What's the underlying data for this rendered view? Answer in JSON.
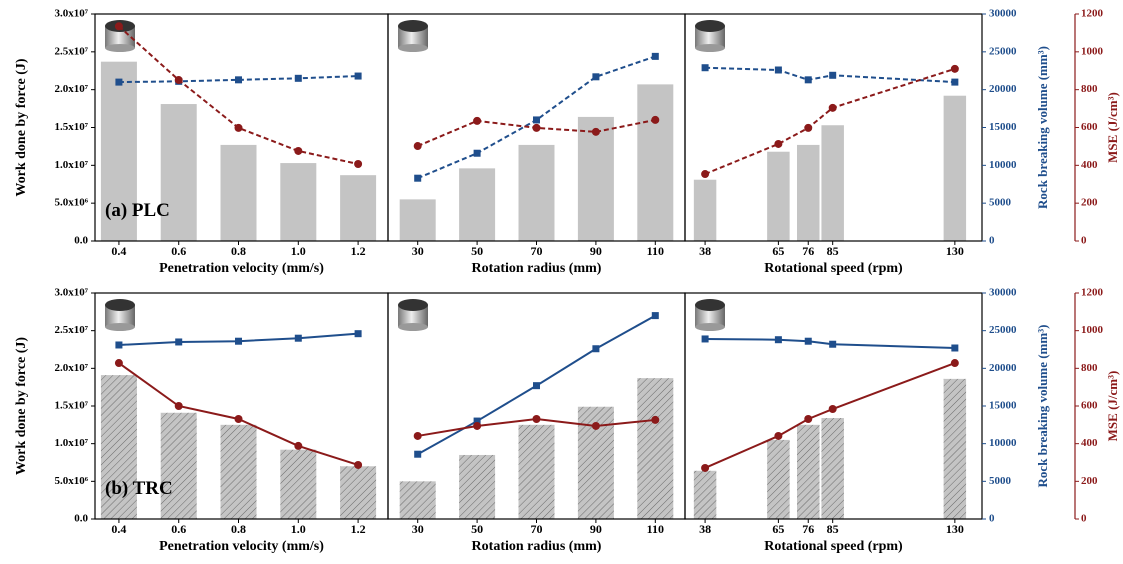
{
  "chart_data": [
    {
      "type": "bar",
      "annotation": "(a) PLC",
      "xlabel": "Penetration velocity (mm/s)",
      "ylabel": "Work done by force (J)",
      "ylim": [
        0,
        30000000
      ],
      "yticks": [
        {
          "value": 0,
          "label": "0.0"
        },
        {
          "value": 5000000,
          "label": "5.0x10⁶"
        },
        {
          "value": 10000000,
          "label": "1.0x10⁷"
        },
        {
          "value": 15000000,
          "label": "1.5x10⁷"
        },
        {
          "value": 20000000,
          "label": "2.0x10⁷"
        },
        {
          "value": 25000000,
          "label": "2.5x10⁷"
        },
        {
          "value": 30000000,
          "label": "3.0x10⁷"
        }
      ],
      "x": [
        0.4,
        0.6,
        0.8,
        1.0,
        1.2
      ],
      "xlim": [
        0.32,
        1.3
      ],
      "xticks": [
        0.4,
        0.6,
        0.8,
        {
          "value": 1.0,
          "label": "1.0"
        },
        1.2
      ],
      "series": [
        {
          "type": "bar",
          "axis": "y",
          "color": "#c4c4c4",
          "hatch": false,
          "values": [
            23700000,
            18100000,
            12700000,
            10300000,
            8700000
          ]
        },
        {
          "type": "line",
          "axis": "y2",
          "color": "#1f4e8c",
          "marker": "square",
          "linestyle": "dashed",
          "values": [
            21000,
            21100,
            21300,
            21500,
            21800
          ]
        },
        {
          "type": "line",
          "axis": "y3",
          "color": "#8b1a1a",
          "marker": "circle",
          "linestyle": "dashed",
          "values": [
            1135,
            851,
            598,
            476,
            407
          ]
        }
      ]
    },
    {
      "type": "bar",
      "xlabel": "Rotation radius (mm)",
      "x": [
        30,
        50,
        70,
        90,
        110
      ],
      "xlim": [
        20,
        120
      ],
      "xticks": [
        30,
        50,
        70,
        90,
        110
      ],
      "series": [
        {
          "type": "bar",
          "axis": "y",
          "color": "#c4c4c4",
          "hatch": false,
          "values": [
            5500000,
            9600000,
            12700000,
            16400000,
            20700000
          ]
        },
        {
          "type": "line",
          "axis": "y2",
          "color": "#1f4e8c",
          "marker": "square",
          "linestyle": "dashed",
          "values": [
            8300,
            11600,
            16000,
            21700,
            24400
          ]
        },
        {
          "type": "line",
          "axis": "y3",
          "color": "#8b1a1a",
          "marker": "circle",
          "linestyle": "dashed",
          "values": [
            502,
            635,
            598,
            577,
            640
          ]
        }
      ]
    },
    {
      "type": "bar",
      "xlabel": "Rotational speed (rpm)",
      "x": [
        38,
        65,
        76,
        85,
        130
      ],
      "xlim": [
        30.6,
        140
      ],
      "xticks": [
        38,
        65,
        76,
        85,
        130
      ],
      "y2label": "Rock breaking volume (mm³)",
      "y2lim": [
        0,
        30000
      ],
      "y2ticks": [
        0,
        5000,
        10000,
        15000,
        20000,
        25000,
        30000
      ],
      "y3label": "MSE (J/cm³)",
      "y3lim": [
        0,
        1200
      ],
      "y3ticks": [
        0,
        200,
        400,
        600,
        800,
        1000,
        1200
      ],
      "series": [
        {
          "type": "bar",
          "axis": "y",
          "color": "#c4c4c4",
          "hatch": false,
          "values": [
            8100000,
            11800000,
            12700000,
            15300000,
            19200000
          ]
        },
        {
          "type": "line",
          "axis": "y2",
          "color": "#1f4e8c",
          "marker": "square",
          "linestyle": "dashed",
          "values": [
            22900,
            22600,
            21300,
            21900,
            21000
          ]
        },
        {
          "type": "line",
          "axis": "y3",
          "color": "#8b1a1a",
          "marker": "circle",
          "linestyle": "dashed",
          "values": [
            354,
            513,
            598,
            704,
            910
          ]
        }
      ]
    },
    {
      "type": "bar",
      "annotation": "(b) TRC",
      "xlabel": "Penetration velocity (mm/s)",
      "ylabel": "Work done by force (J)",
      "ylim": [
        0,
        30000000
      ],
      "yticks": [
        {
          "value": 0,
          "label": "0.0"
        },
        {
          "value": 5000000,
          "label": "5.0x10⁶"
        },
        {
          "value": 10000000,
          "label": "1.0x10⁷"
        },
        {
          "value": 15000000,
          "label": "1.5x10⁷"
        },
        {
          "value": 20000000,
          "label": "2.0x10⁷"
        },
        {
          "value": 25000000,
          "label": "2.5x10⁷"
        },
        {
          "value": 30000000,
          "label": "3.0x10⁷"
        }
      ],
      "x": [
        0.4,
        0.6,
        0.8,
        1.0,
        1.2
      ],
      "xlim": [
        0.32,
        1.3
      ],
      "xticks": [
        0.4,
        0.6,
        0.8,
        {
          "value": 1.0,
          "label": "1.0"
        },
        1.2
      ],
      "series": [
        {
          "type": "bar",
          "axis": "y",
          "color": "#c4c4c4",
          "hatch": true,
          "values": [
            19100000,
            14100000,
            12500000,
            9200000,
            7000000
          ]
        },
        {
          "type": "line",
          "axis": "y2",
          "color": "#1f4e8c",
          "marker": "square",
          "linestyle": "solid",
          "values": [
            23100,
            23500,
            23600,
            24000,
            24600
          ]
        },
        {
          "type": "line",
          "axis": "y3",
          "color": "#8b1a1a",
          "marker": "circle",
          "linestyle": "solid",
          "values": [
            828,
            600,
            531,
            388,
            287
          ]
        }
      ]
    },
    {
      "type": "bar",
      "xlabel": "Rotation radius (mm)",
      "x": [
        30,
        50,
        70,
        90,
        110
      ],
      "xlim": [
        20,
        120
      ],
      "xticks": [
        30,
        50,
        70,
        90,
        110
      ],
      "series": [
        {
          "type": "bar",
          "axis": "y",
          "color": "#c4c4c4",
          "hatch": true,
          "values": [
            5000000,
            8500000,
            12500000,
            14900000,
            18700000
          ]
        },
        {
          "type": "line",
          "axis": "y2",
          "color": "#1f4e8c",
          "marker": "square",
          "linestyle": "solid",
          "values": [
            8600,
            13000,
            17700,
            22600,
            27000
          ]
        },
        {
          "type": "line",
          "axis": "y3",
          "color": "#8b1a1a",
          "marker": "circle",
          "linestyle": "solid",
          "values": [
            441,
            494,
            531,
            494,
            526
          ]
        }
      ]
    },
    {
      "type": "bar",
      "xlabel": "Rotational speed (rpm)",
      "x": [
        38,
        65,
        76,
        85,
        130
      ],
      "xlim": [
        30.6,
        140
      ],
      "xticks": [
        38,
        65,
        76,
        85,
        130
      ],
      "y2label": "Rock breaking volume (mm³)",
      "y2lim": [
        0,
        30000
      ],
      "y2ticks": [
        0,
        5000,
        10000,
        15000,
        20000,
        25000,
        30000
      ],
      "y3label": "MSE (J/cm³)",
      "y3lim": [
        0,
        1200
      ],
      "y3ticks": [
        0,
        200,
        400,
        600,
        800,
        1000,
        1200
      ],
      "series": [
        {
          "type": "bar",
          "axis": "y",
          "color": "#c4c4c4",
          "hatch": true,
          "values": [
            6400000,
            10500000,
            12500000,
            13400000,
            18600000
          ]
        },
        {
          "type": "line",
          "axis": "y2",
          "color": "#1f4e8c",
          "marker": "square",
          "linestyle": "solid",
          "values": [
            23900,
            23800,
            23600,
            23200,
            22700
          ]
        },
        {
          "type": "line",
          "axis": "y3",
          "color": "#8b1a1a",
          "marker": "circle",
          "linestyle": "solid",
          "values": [
            271,
            441,
            531,
            584,
            828
          ]
        }
      ]
    }
  ]
}
